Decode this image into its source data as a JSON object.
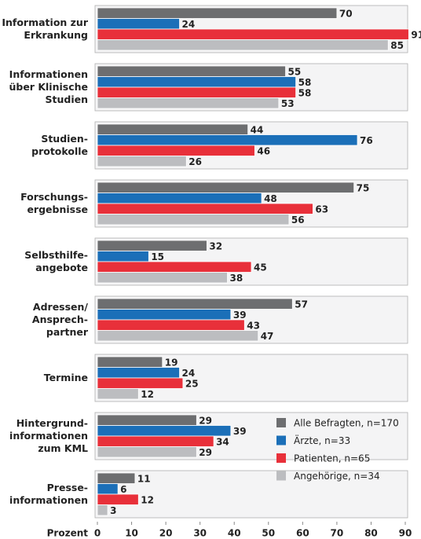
{
  "chart_data": {
    "type": "bar",
    "orientation": "horizontal",
    "categories": [
      "Information zur\nErkrankung",
      "Informationen\nüber Klinische\nStudien",
      "Studien-\nprotokolle",
      "Forschungs-\nergebnisse",
      "Selbsthilfe-\nangebote",
      "Adressen/\nAnsprech-\npartner",
      "Termine",
      "Hintergrund-\ninformationen\nzum KML",
      "Presse-\ninformationen"
    ],
    "series": [
      {
        "name": "Alle Befragten, n=170",
        "color": "#6d6e70",
        "values": [
          70,
          55,
          44,
          75,
          32,
          57,
          19,
          29,
          11
        ]
      },
      {
        "name": "Ärzte, n=33",
        "color": "#1b6fb8",
        "values": [
          24,
          58,
          76,
          48,
          15,
          39,
          24,
          39,
          6
        ]
      },
      {
        "name": "Patienten, n=65",
        "color": "#e8303a",
        "values": [
          91,
          58,
          46,
          63,
          45,
          43,
          25,
          34,
          12
        ]
      },
      {
        "name": "Angehörige, n=34",
        "color": "#bcbdc0",
        "values": [
          85,
          53,
          26,
          56,
          38,
          47,
          12,
          29,
          3
        ]
      }
    ],
    "xlabel": "Prozent",
    "xlim": [
      0,
      90
    ],
    "xticks": [
      0,
      10,
      20,
      30,
      40,
      50,
      60,
      70,
      80,
      90
    ],
    "legend": "lower right"
  }
}
